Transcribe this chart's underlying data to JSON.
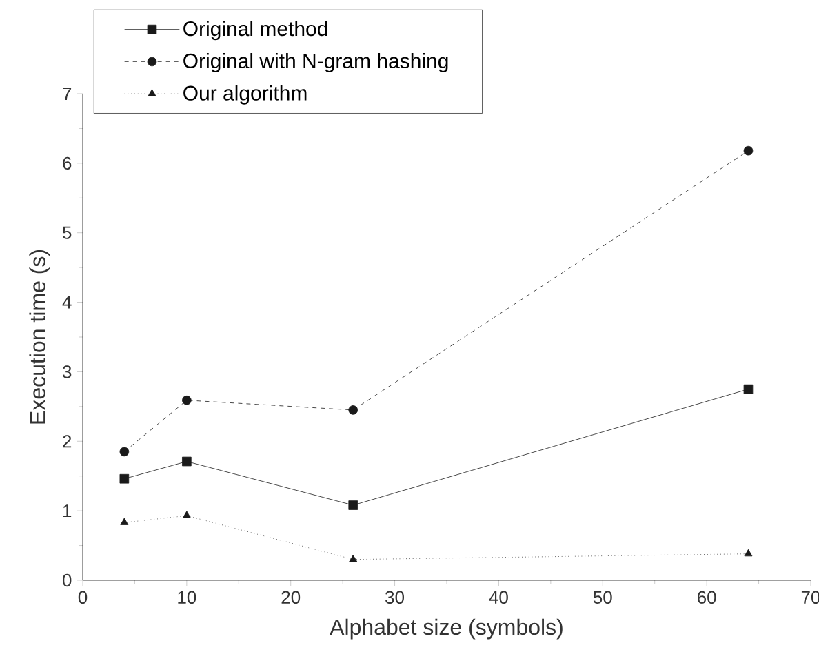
{
  "chart_data": {
    "type": "line",
    "xlabel": "Alphabet size (symbols)",
    "ylabel": "Execution time (s)",
    "x": [
      4,
      10,
      26,
      64
    ],
    "series": [
      {
        "name": "Original method",
        "color": "#1a1a1a",
        "values": [
          1.46,
          1.71,
          1.08,
          2.75
        ],
        "marker": "square",
        "line_style": "solid"
      },
      {
        "name": "Original with N-gram hashing",
        "color": "#1a1a1a",
        "values": [
          1.85,
          2.59,
          2.45,
          6.18
        ],
        "marker": "circle",
        "line_style": "dashed"
      },
      {
        "name": "Our algorithm",
        "color": "#1a1a1a",
        "values": [
          0.83,
          0.93,
          0.3,
          0.38
        ],
        "marker": "triangle",
        "line_style": "dotted"
      }
    ],
    "xlim": [
      0,
      70
    ],
    "ylim": [
      0,
      7
    ],
    "xticks": [
      0,
      10,
      20,
      30,
      40,
      50,
      60,
      70
    ],
    "yticks": [
      0,
      1,
      2,
      3,
      4,
      5,
      6,
      7
    ],
    "grid": false,
    "legend": "top left"
  }
}
